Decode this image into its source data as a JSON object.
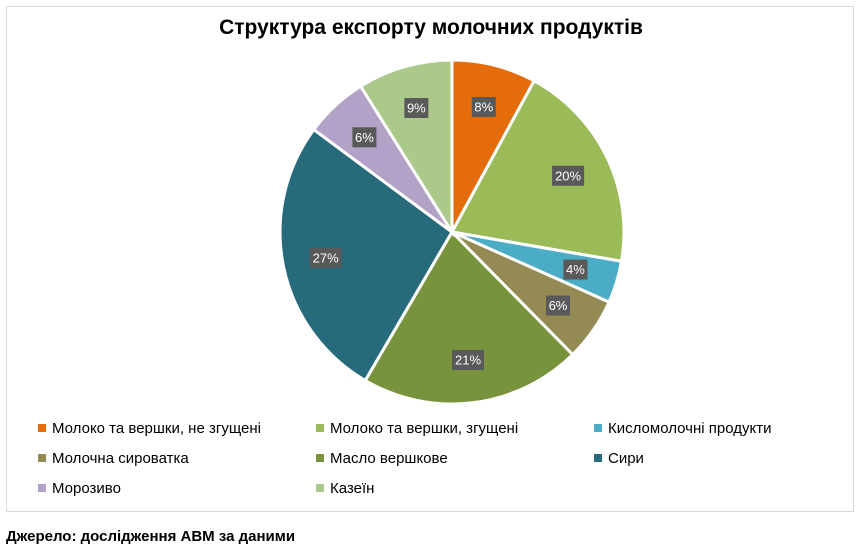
{
  "chart_data": {
    "type": "pie",
    "title": "Структура експорту молочних продуктів",
    "categories": [
      "Молоко та вершки, не згущені",
      "Молоко та вершки, згущені",
      "Кисломолочні продукти",
      "Молочна сироватка",
      "Масло вершкове",
      "Сири",
      "Морозиво",
      "Казеїн"
    ],
    "values": [
      8,
      20,
      4,
      6,
      21,
      27,
      6,
      9
    ],
    "data_labels": [
      "8%",
      "20%",
      "4%",
      "6%",
      "21%",
      "27%",
      "6%",
      "9%"
    ],
    "colors": [
      "#E46C0A",
      "#9BBB59",
      "#4BACC6",
      "#948A54",
      "#77933C",
      "#276A7C",
      "#B3A2C7",
      "#ABC98A"
    ],
    "label_box_color": "#595959",
    "legend_position": "bottom"
  },
  "source": "Джерело: дослідження АВМ за даними"
}
